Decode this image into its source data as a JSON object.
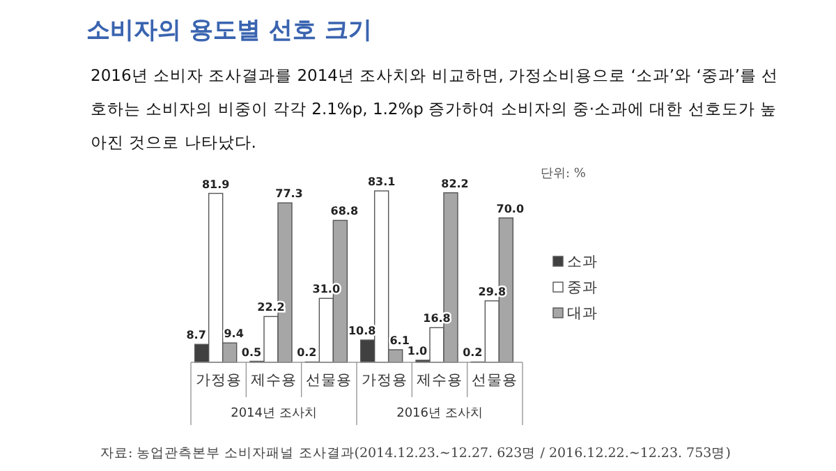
{
  "chart_data": {
    "type": "bar",
    "title": "소비자의 용도별 선호 크기",
    "subtitle": "2016년 소비자 조사결과를 2014년 조사치와 비교하면, 가정소비용으로 ‘소과’와 ‘중과’를 선호하는 소비자의 비중이 각각 2.1%p, 1.2%p 증가하여 소비자의 중·소과에 대한 선호도가 높아진 것으로 나타났다.",
    "categories": [
      "가정용",
      "제수용",
      "선물용",
      "가정용",
      "제수용",
      "선물용"
    ],
    "series": [
      {
        "name": "소과",
        "color": "#404040",
        "values": [
          8.7,
          0.5,
          0.2,
          10.8,
          1.0,
          0.2
        ],
        "value_labels": [
          "8.7",
          "0.5",
          "0.2",
          "10.8",
          "1.0",
          "0.2"
        ]
      },
      {
        "name": "중과",
        "color": "#ffffff",
        "values": [
          81.9,
          22.2,
          31.0,
          83.1,
          16.8,
          29.8
        ],
        "value_labels": [
          "81.9",
          "22.2",
          "31.0",
          "83.1",
          "16.8",
          "29.8"
        ]
      },
      {
        "name": "대과",
        "color": "#a6a6a6",
        "values": [
          9.4,
          77.3,
          68.8,
          6.1,
          82.2,
          70.0
        ],
        "value_labels": [
          "9.4",
          "77.3",
          "68.8",
          "6.1",
          "82.2",
          "70.0"
        ]
      }
    ],
    "legend": "right",
    "annotations": [
      "2014년 조사치",
      "2016년 조사치",
      "단위: %",
      "자료: 농업관측본부 소비자패널 조사결과(2014.12.23.~12.27. 623명 / 2016.12.22.~12.23. 753명)"
    ]
  }
}
